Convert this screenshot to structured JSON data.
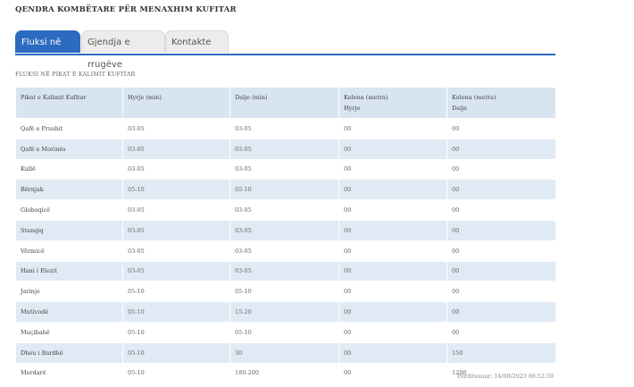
{
  "page": {
    "title": "QENDRA KOMBËTARE PËR MENAXHIM KUFITAR"
  },
  "tabs": [
    {
      "label": "Fluksi në kufi",
      "active": true
    },
    {
      "label": "Gjendja e rrugëve",
      "active": false
    },
    {
      "label": "Kontakte",
      "active": false
    }
  ],
  "section": {
    "title": "FLUKSI NË PIKAT E KALIMIT KUFITAR"
  },
  "table": {
    "headers": [
      {
        "line1": "Pikat e Kalimit Kufitar",
        "line2": ""
      },
      {
        "line1": "Hyrje (min)",
        "line2": ""
      },
      {
        "line1": "Dalje (min)",
        "line2": ""
      },
      {
        "line1": "Kolona (metra)",
        "line2": "Hyrje"
      },
      {
        "line1": "Kolona (metra)",
        "line2": "Dalje"
      }
    ],
    "rows": [
      [
        "Qafë e Prushit",
        "03-05",
        "03-05",
        "00",
        "00"
      ],
      [
        "Qafë e Morinës",
        "03-05",
        "03-05",
        "00",
        "00"
      ],
      [
        "Kullë",
        "03-05",
        "03-05",
        "00",
        "00"
      ],
      [
        "Bërnjak",
        "05-10",
        "05-10",
        "00",
        "00"
      ],
      [
        "Globoqicë",
        "03-05",
        "03-05",
        "00",
        "00"
      ],
      [
        "Stanqiq",
        "03-05",
        "03-05",
        "00",
        "00"
      ],
      [
        "Vërmicë",
        "03-05",
        "03-05",
        "00",
        "00"
      ],
      [
        "Hani i Elezit",
        "03-05",
        "03-05",
        "00",
        "00"
      ],
      [
        "Jarinje",
        "05-10",
        "05-10",
        "00",
        "00"
      ],
      [
        "Mutivodë",
        "05-10",
        "15-20",
        "00",
        "00"
      ],
      [
        "Muçibabë",
        "05-10",
        "05-10",
        "00",
        "00"
      ],
      [
        "Dheu i Bardhë",
        "05-10",
        "30",
        "00",
        "150"
      ],
      [
        "Merdarë",
        "05-10",
        "180-200",
        "00",
        "1200"
      ]
    ]
  },
  "footer": {
    "updated": "Përditesuar: 14/08/2023 06:52:59"
  },
  "colors": {
    "accent": "#2c6bc0",
    "row_alt": "#dfeaf4",
    "header_bg": "#d8e5f1"
  }
}
